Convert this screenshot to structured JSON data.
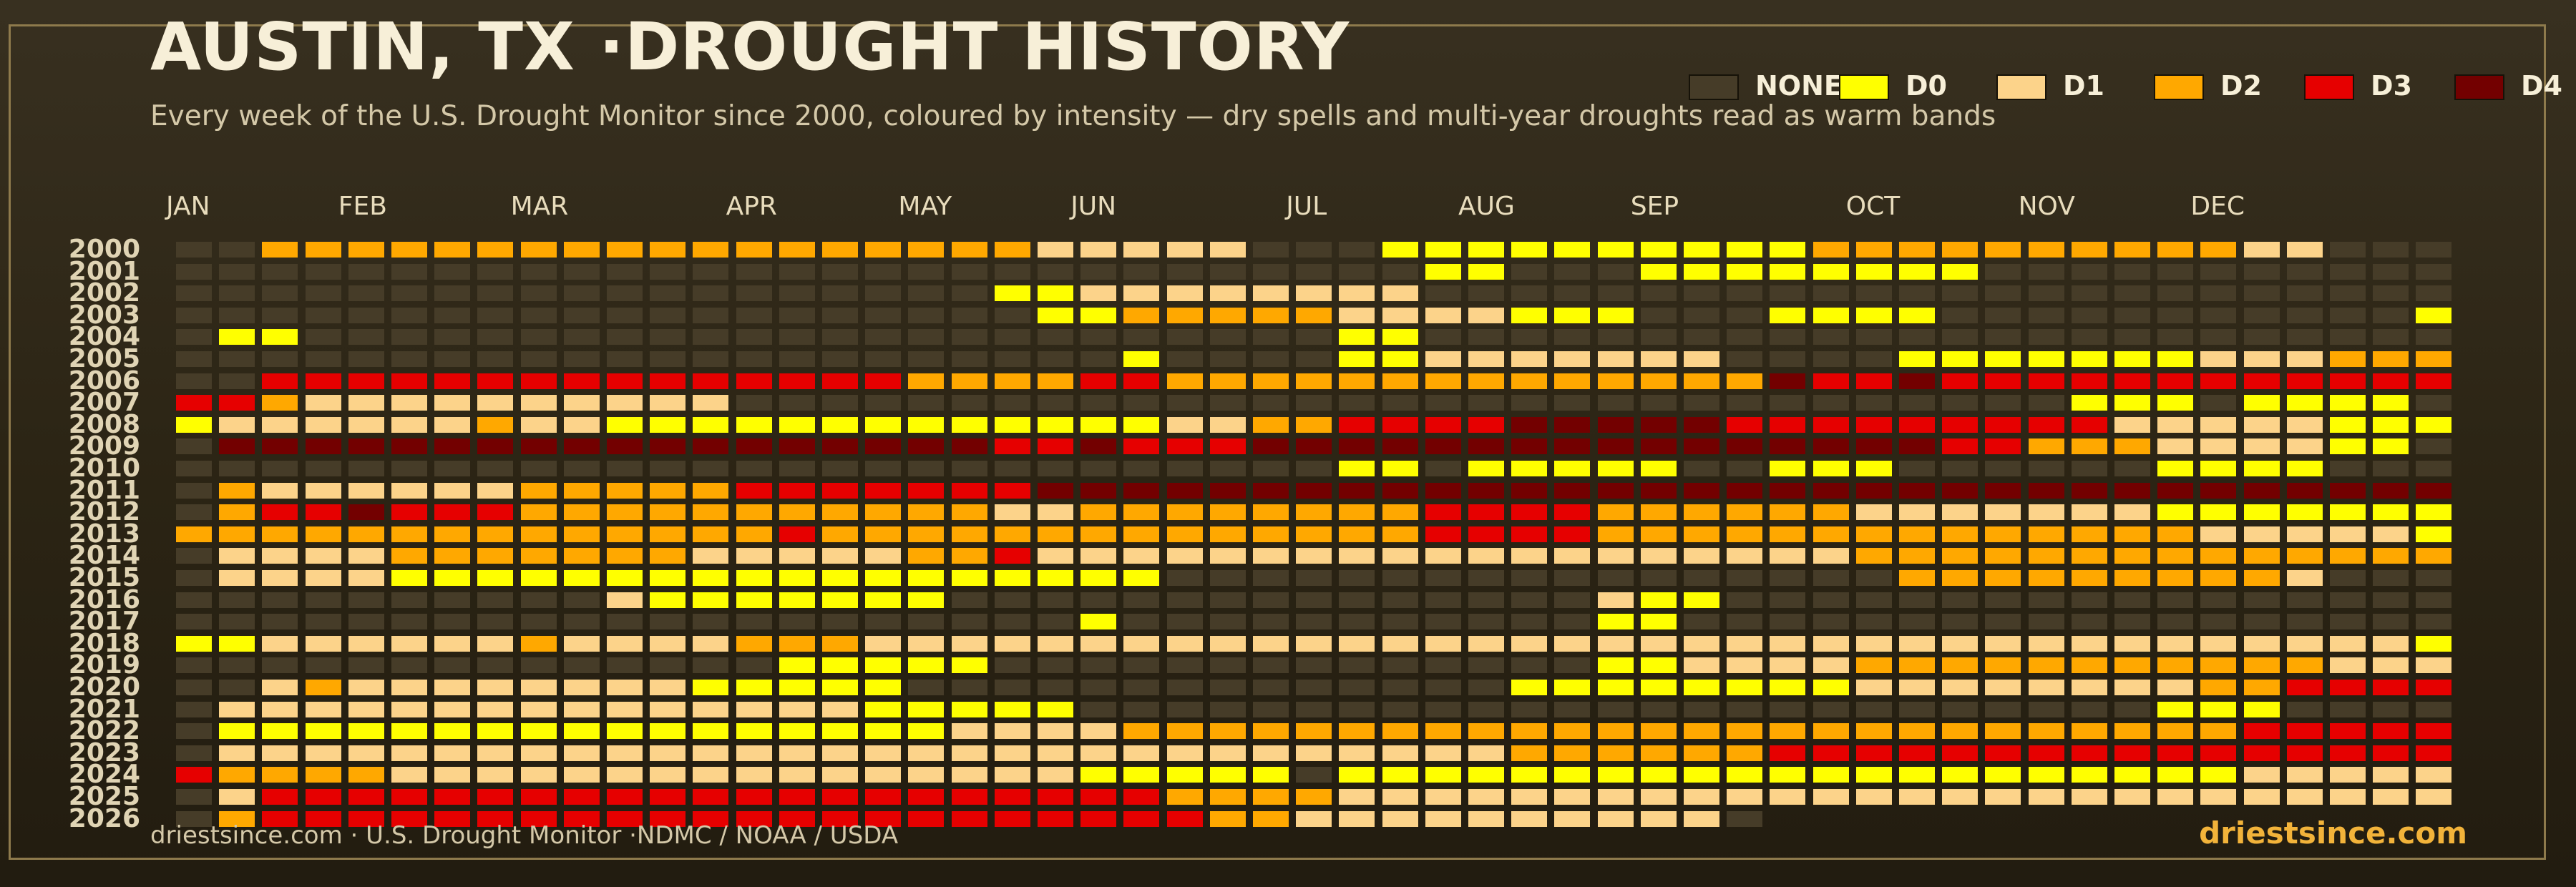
{
  "title": "AUSTIN, TX ·DROUGHT HISTORY",
  "subtitle": "Every week of the U.S. Drought Monitor since 2000, coloured by intensity — dry spells and multi-year droughts read as warm bands",
  "footer": {
    "source": "driestsince.com  · U.S. Drought Monitor ·NDMC / NOAA / USDA",
    "brand": "driestsince.com"
  },
  "legend": [
    {
      "label": "NONE",
      "color": "#463c28"
    },
    {
      "label": "D0",
      "color": "#ffff00"
    },
    {
      "label": "D1",
      "color": "#fcd38a"
    },
    {
      "label": "D2",
      "color": "#ffa800"
    },
    {
      "label": "D3",
      "color": "#e60000"
    },
    {
      "label": "D4",
      "color": "#730000"
    }
  ],
  "chart_data": {
    "type": "heatmap",
    "title": "AUSTIN, TX ·DROUGHT HISTORY",
    "x_axis": "week of year (columns 1–53)",
    "month_ticks": [
      {
        "label": "JAN",
        "week": 1
      },
      {
        "label": "FEB",
        "week": 5
      },
      {
        "label": "MAR",
        "week": 9
      },
      {
        "label": "APR",
        "week": 14
      },
      {
        "label": "MAY",
        "week": 18
      },
      {
        "label": "JUN",
        "week": 22
      },
      {
        "label": "JUL",
        "week": 27
      },
      {
        "label": "AUG",
        "week": 31
      },
      {
        "label": "SEP",
        "week": 35
      },
      {
        "label": "OCT",
        "week": 40
      },
      {
        "label": "NOV",
        "week": 44
      },
      {
        "label": "DEC",
        "week": 48
      }
    ],
    "categories": [
      "NONE",
      "D0",
      "D1",
      "D2",
      "D3",
      "D4"
    ],
    "encoding": "0=NONE 1=D0 2=D1 3=D2 4=D3 5=D4; '-' = no data",
    "rows": [
      {
        "year": "2000",
        "weeks": "00333333333333333333222220001111111111333333333322000"
      },
      {
        "year": "2001",
        "weeks": "0000000000000000000000000000011000111111110000000000000"
      },
      {
        "year": "2002",
        "weeks": "00000000000000000001122222222000000000000000000000000"
      },
      {
        "year": "2003",
        "weeks": "00000000000000000000113333322221110001111000000000001111"
      },
      {
        "year": "2004",
        "weeks": "01100000000000000000000000011000000000000000000000000"
      },
      {
        "year": "2005",
        "weeks": "00000000000000000000001000011222222200001111111222333344"
      },
      {
        "year": "2006",
        "weeks": "00444444444444444333344333333333333335445444444444444444"
      },
      {
        "year": "2007",
        "weeks": "44322222222220000000000000000000000000000000111011110"
      },
      {
        "year": "2008",
        "weeks": "1222222322111111111111122334444555554444444442222211114"
      },
      {
        "year": "2009",
        "weeks": "0555555555555555555445444555555555555555544333222211000"
      },
      {
        "year": "2010",
        "weeks": "00000000000000000000000000011011111001110000001111000"
      },
      {
        "year": "2011",
        "weeks": "03222222333334444444555555555555555555555555555555555555"
      },
      {
        "year": "2012",
        "weeks": "03445444333333333332233333333444433333322222221111111111"
      },
      {
        "year": "2013",
        "weeks": "33333333333333433333333333333444433333333333333222221111"
      },
      {
        "year": "2014",
        "weeks": "02222333333322222334222222222222222222233333333333333333"
      },
      {
        "year": "2015",
        "weeks": "02222111111111111111111000000000000000003333333332000000"
      },
      {
        "year": "2016",
        "weeks": "0000000000211111110000000000000002110000000000000000000"
      },
      {
        "year": "2017",
        "weeks": "0000000000000000000001000000000001100000000000000000000"
      },
      {
        "year": "2018",
        "weeks": "11222222322223332222222222222222222222222222222222221111"
      },
      {
        "year": "2019",
        "weeks": "00000000000000111110000000000000011222233333333333222222"
      },
      {
        "year": "2020",
        "weeks": "00232222222211111000000000000001111111122222222334444444"
      },
      {
        "year": "2021",
        "weeks": "0222222222222222111110000000000000000000000000111000001111"
      },
      {
        "year": "2022",
        "weeks": "0111111111111111112222333333333333333333333333334444444422"
      },
      {
        "year": "2023",
        "weeks": "0222222222222222222222222222222333333444444444444444444444"
      },
      {
        "year": "2024",
        "weeks": "4333322222222222222221111101111111111111111111112222222222"
      },
      {
        "year": "2025",
        "weeks": "02444444444444444444444333322222222222222222222222222222222"
      },
      {
        "year": "2026",
        "weeks": "0344444444444444444444443322222222220--------------------"
      }
    ]
  }
}
